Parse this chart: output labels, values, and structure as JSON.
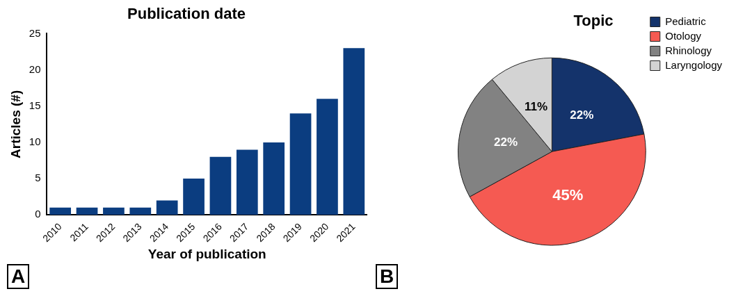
{
  "chart_data": [
    {
      "type": "bar",
      "title": "Publication date",
      "xlabel": "Year of publication",
      "ylabel": "Articles (#)",
      "categories": [
        "2010",
        "2011",
        "2012",
        "2013",
        "2014",
        "2015",
        "2016",
        "2017",
        "2018",
        "2019",
        "2020",
        "2021"
      ],
      "values": [
        1,
        1,
        1,
        1,
        2,
        5,
        8,
        9,
        10,
        14,
        16,
        23
      ],
      "color": "#0b3d80",
      "ylim": [
        0,
        25
      ],
      "yticks": [
        0,
        5,
        10,
        15,
        20,
        25
      ],
      "grid": false,
      "legend": false,
      "annotations": [
        "A"
      ]
    },
    {
      "type": "pie",
      "title": "Topic",
      "categories": [
        "Pediatric",
        "Otology",
        "Rhinology",
        "Laryngology"
      ],
      "values": [
        22,
        45,
        22,
        11
      ],
      "colors": [
        "#14336b",
        "#f55a52",
        "#828282",
        "#d3d3d3"
      ],
      "value_labels": [
        "22%",
        "45%",
        "22%",
        "11%"
      ],
      "legend": "right",
      "annotations": [
        "B"
      ]
    }
  ]
}
